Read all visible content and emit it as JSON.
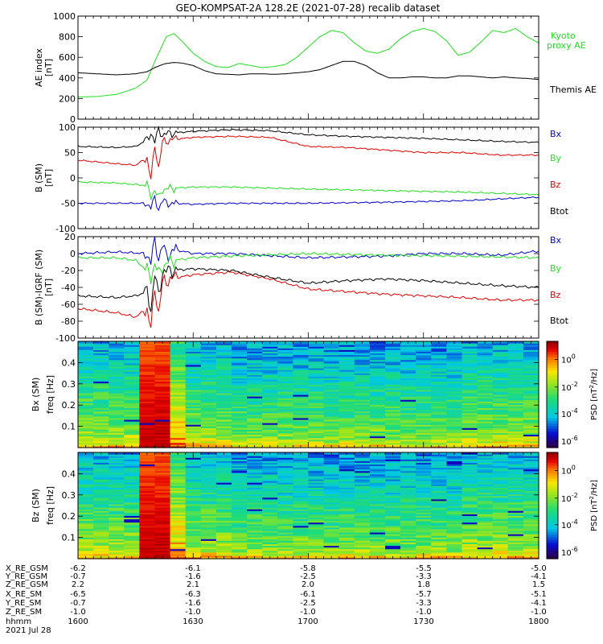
{
  "title": "GEO-KOMPSAT-2A 128.2E (2021-07-28) recalib dataset",
  "colors": {
    "black": "#000000",
    "red": "#e00000",
    "green": "#22dd22",
    "blue": "#0000cc"
  },
  "chart_data": [
    {
      "type": "line",
      "ylabel": "AE index [nT]",
      "ylim": [
        0,
        1000
      ],
      "yticks": [
        0,
        200,
        400,
        600,
        800,
        1000
      ],
      "x_range": [
        "16:00",
        "18:00"
      ],
      "series": [
        {
          "name": "Kyoto proxy AE",
          "color": "#22dd22",
          "x": [
            0,
            5,
            10,
            15,
            18,
            20,
            22,
            23,
            25,
            27,
            30,
            33,
            36,
            39,
            42,
            45,
            48,
            51,
            54,
            57,
            60,
            63,
            66,
            69,
            72,
            75,
            78,
            81,
            84,
            87,
            90,
            93,
            96,
            99,
            102,
            105,
            108,
            111,
            114,
            117,
            120
          ],
          "y": [
            215,
            220,
            240,
            300,
            380,
            560,
            720,
            800,
            830,
            760,
            640,
            560,
            510,
            500,
            540,
            520,
            500,
            510,
            530,
            600,
            700,
            800,
            860,
            840,
            740,
            660,
            640,
            680,
            780,
            850,
            880,
            850,
            760,
            620,
            650,
            750,
            860,
            840,
            880,
            800,
            740
          ]
        },
        {
          "name": "Themis AE",
          "color": "#000000",
          "x": [
            0,
            5,
            10,
            15,
            18,
            20,
            22,
            23,
            25,
            27,
            30,
            33,
            36,
            39,
            42,
            45,
            48,
            51,
            54,
            57,
            60,
            63,
            66,
            69,
            72,
            75,
            78,
            81,
            84,
            87,
            90,
            93,
            96,
            99,
            102,
            105,
            108,
            111,
            114,
            117,
            120
          ],
          "y": [
            450,
            440,
            430,
            440,
            460,
            500,
            530,
            540,
            550,
            545,
            520,
            470,
            440,
            435,
            430,
            440,
            440,
            435,
            440,
            450,
            460,
            480,
            520,
            560,
            560,
            520,
            450,
            400,
            400,
            410,
            410,
            400,
            400,
            420,
            420,
            410,
            400,
            410,
            400,
            395,
            385
          ]
        }
      ],
      "legend_labels": [
        {
          "text": "Kyoto proxy AE",
          "color": "#22dd22"
        },
        {
          "text": "Themis AE",
          "color": "#000000"
        }
      ]
    },
    {
      "type": "line",
      "ylabel": "B (SM) [nT]",
      "ylim": [
        -100,
        100
      ],
      "yticks": [
        -100,
        -50,
        0,
        50,
        100
      ],
      "x_range": [
        "16:00",
        "18:00"
      ],
      "series": [
        {
          "name": "Bx",
          "color": "#0000cc",
          "x": [
            0,
            10,
            18,
            19,
            20,
            21,
            22,
            23,
            25,
            30,
            40,
            60,
            80,
            100,
            120
          ],
          "y": [
            -50,
            -50,
            -50,
            -58,
            -42,
            -60,
            -45,
            -50,
            -50,
            -52,
            -50,
            -50,
            -48,
            -45,
            -38
          ]
        },
        {
          "name": "By",
          "color": "#22dd22",
          "x": [
            0,
            10,
            18,
            19,
            20,
            21,
            22,
            23,
            25,
            30,
            40,
            60,
            80,
            100,
            120
          ],
          "y": [
            -8,
            -10,
            -15,
            -35,
            -25,
            -40,
            -22,
            -22,
            -20,
            -18,
            -18,
            -22,
            -25,
            -28,
            -33
          ]
        },
        {
          "name": "Bz",
          "color": "#e00000",
          "x": [
            0,
            10,
            15,
            18,
            19,
            20,
            21,
            22,
            24,
            30,
            40,
            50,
            60,
            70,
            80,
            90,
            100,
            110,
            120
          ],
          "y": [
            35,
            28,
            25,
            40,
            -5,
            65,
            20,
            70,
            75,
            80,
            82,
            80,
            62,
            60,
            55,
            50,
            50,
            45,
            45
          ]
        },
        {
          "name": "Btot",
          "color": "#000000",
          "x": [
            0,
            10,
            15,
            18,
            19,
            20,
            21,
            22,
            24,
            30,
            40,
            50,
            60,
            70,
            80,
            90,
            100,
            110,
            120
          ],
          "y": [
            62,
            60,
            62,
            75,
            90,
            70,
            95,
            85,
            88,
            92,
            95,
            93,
            85,
            82,
            80,
            78,
            75,
            72,
            70
          ]
        }
      ],
      "legend_labels": [
        {
          "text": "Bx",
          "color": "#0000cc"
        },
        {
          "text": "By",
          "color": "#22dd22"
        },
        {
          "text": "Bz",
          "color": "#e00000"
        },
        {
          "text": "Btot",
          "color": "#000000"
        }
      ]
    },
    {
      "type": "line",
      "ylabel": "B (SM)-IGRF (SM) [nT]",
      "ylim": [
        -100,
        20
      ],
      "yticks": [
        -100,
        -80,
        -60,
        -40,
        -20,
        0,
        20
      ],
      "x_range": [
        "16:00",
        "18:00"
      ],
      "series": [
        {
          "name": "Bx",
          "color": "#0000cc",
          "x": [
            0,
            10,
            18,
            19,
            20,
            21,
            22,
            23,
            25,
            30,
            40,
            60,
            80,
            90,
            100,
            110,
            120
          ],
          "y": [
            0,
            2,
            0,
            -10,
            15,
            -5,
            10,
            -3,
            5,
            0,
            0,
            -5,
            -3,
            0,
            0,
            -2,
            3
          ]
        },
        {
          "name": "By",
          "color": "#22dd22",
          "x": [
            0,
            10,
            15,
            18,
            19,
            20,
            21,
            22,
            23,
            25,
            30,
            40,
            60,
            80,
            100,
            120
          ],
          "y": [
            -5,
            -5,
            -8,
            -20,
            -28,
            -12,
            -25,
            -15,
            -12,
            -8,
            -5,
            -3,
            0,
            -2,
            -3,
            -5
          ]
        },
        {
          "name": "Bz",
          "color": "#e00000",
          "x": [
            0,
            10,
            15,
            18,
            19,
            20,
            21,
            22,
            24,
            30,
            40,
            50,
            60,
            70,
            80,
            90,
            100,
            110,
            120
          ],
          "y": [
            -65,
            -70,
            -75,
            -65,
            -90,
            -40,
            -70,
            -35,
            -30,
            -25,
            -22,
            -30,
            -42,
            -45,
            -48,
            -50,
            -52,
            -55,
            -55
          ]
        },
        {
          "name": "Btot",
          "color": "#000000",
          "x": [
            0,
            10,
            15,
            18,
            19,
            20,
            21,
            22,
            24,
            30,
            40,
            50,
            60,
            70,
            80,
            90,
            100,
            110,
            120
          ],
          "y": [
            -50,
            -52,
            -50,
            -45,
            -65,
            -25,
            -50,
            -22,
            -20,
            -18,
            -20,
            -28,
            -35,
            -32,
            -30,
            -32,
            -35,
            -38,
            -40
          ]
        }
      ],
      "legend_labels": [
        {
          "text": "Bx",
          "color": "#0000cc"
        },
        {
          "text": "By",
          "color": "#22dd22"
        },
        {
          "text": "Bz",
          "color": "#e00000"
        },
        {
          "text": "Btot",
          "color": "#000000"
        }
      ]
    },
    {
      "type": "heatmap",
      "ylabel": "Bx (SM) freq [Hz]",
      "ylim": [
        0,
        0.5
      ],
      "yticks": [
        0.1,
        0.2,
        0.3,
        0.4
      ],
      "x_range": [
        "16:00",
        "18:00"
      ],
      "colorbar_label": "PSD [nT^2/Hz]",
      "colorbar_ticks": [
        "10^0",
        "10^-2",
        "10^-4",
        "10^-6"
      ],
      "storm_interval_min": [
        18,
        24
      ]
    },
    {
      "type": "heatmap",
      "ylabel": "Bz (SM) freq [Hz]",
      "ylim": [
        0,
        0.5
      ],
      "yticks": [
        0.1,
        0.2,
        0.3,
        0.4
      ],
      "x_range": [
        "16:00",
        "18:00"
      ],
      "colorbar_label": "PSD [nT^2/Hz]",
      "colorbar_ticks": [
        "10^0",
        "10^-2",
        "10^-4",
        "10^-6"
      ],
      "storm_interval_min": [
        18,
        24
      ]
    }
  ],
  "ephemeris": {
    "labels": [
      "X_RE_GSM",
      "Y_RE_GSM",
      "Z_RE_GSM",
      "X_RE_SM",
      "Y_RE_SM",
      "Z_RE_SM",
      "hhmm"
    ],
    "columns": [
      [
        "-6.2",
        "-0.7",
        "2.2",
        "-6.5",
        "-0.7",
        "-1.0",
        "1600"
      ],
      [
        "-6.1",
        "-1.6",
        "2.1",
        "-6.3",
        "-1.6",
        "-1.0",
        "1630"
      ],
      [
        "-5.8",
        "-2.5",
        "2.0",
        "-6.1",
        "-2.5",
        "-1.0",
        "1700"
      ],
      [
        "-5.5",
        "-3.3",
        "1.8",
        "-5.7",
        "-3.3",
        "-1.0",
        "1730"
      ],
      [
        "-5.0",
        "-4.1",
        "1.5",
        "-5.1",
        "-4.1",
        "-1.0",
        "1800"
      ]
    ],
    "date": "2021 Jul 28"
  }
}
